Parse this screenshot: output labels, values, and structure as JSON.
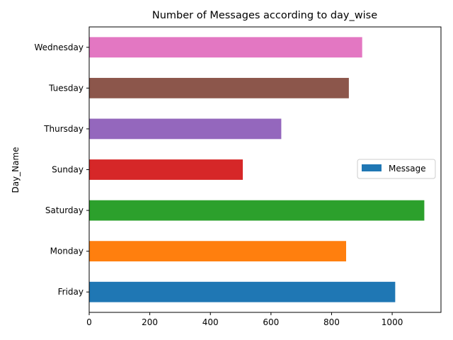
{
  "chart_data": {
    "type": "bar",
    "orientation": "horizontal",
    "title": "Number of Messages according to day_wise",
    "xlabel": "",
    "ylabel": "Day_Name",
    "categories": [
      "Friday",
      "Monday",
      "Saturday",
      "Sunday",
      "Thursday",
      "Tuesday",
      "Wednesday"
    ],
    "series": [
      {
        "name": "Message",
        "values": [
          1010,
          848,
          1106,
          507,
          634,
          857,
          901
        ]
      }
    ],
    "bar_colors": [
      "#1f77b4",
      "#ff7f0e",
      "#2ca02c",
      "#d62728",
      "#9467bd",
      "#8c564b",
      "#e377c2"
    ],
    "legend_color": "#1f77b4",
    "xlim": [
      0,
      1161
    ],
    "xticks": [
      0,
      200,
      400,
      600,
      800,
      1000
    ],
    "grid": false,
    "legend_position": "center-right"
  }
}
